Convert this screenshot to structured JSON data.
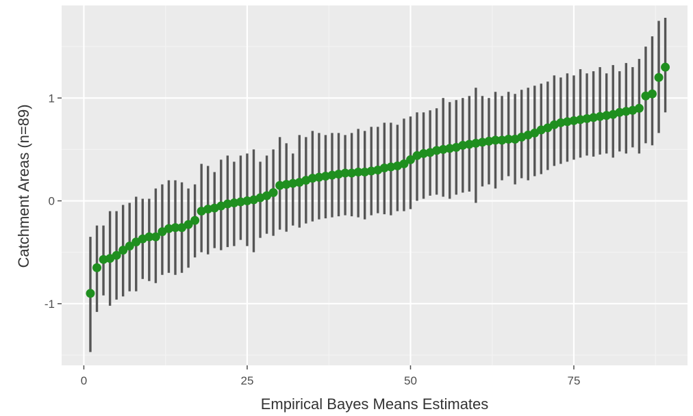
{
  "chart_data": {
    "type": "scatter",
    "xlabel": "Empirical Bayes Means Estimates",
    "ylabel": "Catchment Areas (n=89)",
    "xlim": [
      -3.4,
      92.4
    ],
    "ylim": [
      -1.6,
      1.9
    ],
    "x_ticks": [
      0,
      25,
      50,
      75
    ],
    "x_tick_labels": [
      "0",
      "25",
      "50",
      "75"
    ],
    "y_ticks": [
      -1,
      0,
      1
    ],
    "y_tick_labels": [
      "-1",
      "0",
      "1"
    ],
    "grid": true,
    "legend": "none",
    "colors": {
      "point": "#1f8f1f",
      "errorbar": "#555555",
      "panel": "#ebebeb",
      "grid_major": "#ffffff",
      "grid_minor": "#f3f3f3"
    },
    "series": [
      {
        "x": [
          1,
          2,
          3,
          4,
          5,
          6,
          7,
          8,
          9,
          10,
          11,
          12,
          13,
          14,
          15,
          16,
          17,
          18,
          19,
          20,
          21,
          22,
          23,
          24,
          25,
          26,
          27,
          28,
          29,
          30,
          31,
          32,
          33,
          34,
          35,
          36,
          37,
          38,
          39,
          40,
          41,
          42,
          43,
          44,
          45,
          46,
          47,
          48,
          49,
          50,
          51,
          52,
          53,
          54,
          55,
          56,
          57,
          58,
          59,
          60,
          61,
          62,
          63,
          64,
          65,
          66,
          67,
          68,
          69,
          70,
          71,
          72,
          73,
          74,
          75,
          76,
          77,
          78,
          79,
          80,
          81,
          82,
          83,
          84,
          85,
          86,
          87,
          88,
          89
        ],
        "y": [
          -0.9,
          -0.65,
          -0.57,
          -0.56,
          -0.53,
          -0.48,
          -0.44,
          -0.4,
          -0.37,
          -0.35,
          -0.35,
          -0.3,
          -0.27,
          -0.26,
          -0.26,
          -0.23,
          -0.19,
          -0.1,
          -0.08,
          -0.07,
          -0.05,
          -0.03,
          -0.02,
          -0.01,
          0.0,
          0.01,
          0.03,
          0.05,
          0.08,
          0.15,
          0.16,
          0.17,
          0.18,
          0.2,
          0.22,
          0.23,
          0.24,
          0.25,
          0.26,
          0.27,
          0.27,
          0.28,
          0.28,
          0.29,
          0.3,
          0.32,
          0.33,
          0.34,
          0.36,
          0.4,
          0.44,
          0.46,
          0.47,
          0.49,
          0.5,
          0.51,
          0.52,
          0.54,
          0.55,
          0.56,
          0.57,
          0.58,
          0.59,
          0.59,
          0.6,
          0.6,
          0.62,
          0.64,
          0.66,
          0.69,
          0.71,
          0.74,
          0.76,
          0.77,
          0.78,
          0.79,
          0.8,
          0.81,
          0.82,
          0.83,
          0.84,
          0.86,
          0.87,
          0.88,
          0.9,
          1.02,
          1.04,
          1.2,
          1.3
        ],
        "lower": [
          -1.47,
          -1.08,
          -0.92,
          -1.02,
          -0.96,
          -0.93,
          -0.88,
          -0.88,
          -0.76,
          -0.78,
          -0.8,
          -0.72,
          -0.7,
          -0.72,
          -0.7,
          -0.65,
          -0.55,
          -0.5,
          -0.52,
          -0.46,
          -0.48,
          -0.45,
          -0.44,
          -0.38,
          -0.44,
          -0.5,
          -0.36,
          -0.32,
          -0.34,
          -0.28,
          -0.3,
          -0.24,
          -0.26,
          -0.22,
          -0.2,
          -0.18,
          -0.17,
          -0.16,
          -0.15,
          -0.14,
          -0.15,
          -0.16,
          -0.18,
          -0.14,
          -0.12,
          -0.13,
          -0.14,
          -0.1,
          -0.1,
          -0.08,
          0.0,
          0.02,
          0.05,
          0.06,
          0.04,
          0.02,
          0.06,
          0.08,
          0.09,
          -0.02,
          0.14,
          0.16,
          0.12,
          0.2,
          0.24,
          0.16,
          0.22,
          0.2,
          0.24,
          0.26,
          0.3,
          0.34,
          0.36,
          0.38,
          0.4,
          0.42,
          0.44,
          0.43,
          0.45,
          0.46,
          0.42,
          0.48,
          0.46,
          0.52,
          0.46,
          0.56,
          0.54,
          0.66,
          0.86
        ],
        "upper": [
          -0.35,
          -0.24,
          -0.24,
          -0.1,
          -0.1,
          -0.04,
          -0.02,
          0.04,
          0.02,
          0.02,
          0.12,
          0.16,
          0.2,
          0.2,
          0.18,
          0.12,
          0.16,
          0.36,
          0.34,
          0.28,
          0.4,
          0.44,
          0.38,
          0.44,
          0.46,
          0.5,
          0.38,
          0.44,
          0.5,
          0.62,
          0.56,
          0.46,
          0.64,
          0.62,
          0.68,
          0.66,
          0.64,
          0.66,
          0.66,
          0.64,
          0.66,
          0.7,
          0.68,
          0.72,
          0.72,
          0.76,
          0.76,
          0.74,
          0.8,
          0.82,
          0.86,
          0.86,
          0.88,
          0.9,
          1.0,
          0.96,
          0.98,
          1.0,
          1.02,
          1.1,
          1.02,
          1.0,
          1.06,
          1.02,
          1.06,
          1.04,
          1.08,
          1.1,
          1.12,
          1.14,
          1.16,
          1.22,
          1.2,
          1.24,
          1.22,
          1.28,
          1.24,
          1.26,
          1.3,
          1.24,
          1.32,
          1.26,
          1.34,
          1.3,
          1.38,
          1.5,
          1.6,
          1.75,
          1.78
        ]
      }
    ]
  }
}
